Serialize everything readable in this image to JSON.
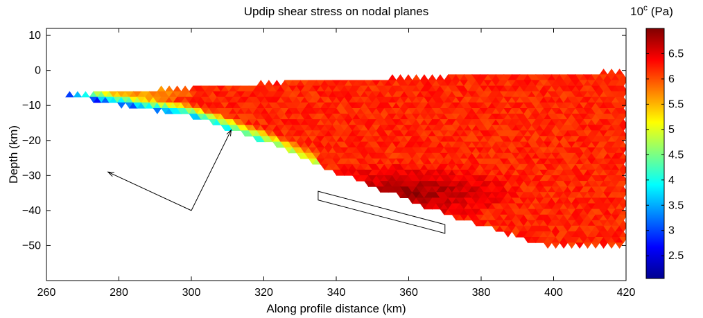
{
  "chart_data": {
    "type": "heatmap",
    "title": "Updip shear stress on nodal planes",
    "xlabel": "Along profile distance (km)",
    "ylabel": "Depth (km)",
    "xlim": [
      260,
      420
    ],
    "ylim": [
      -60,
      12
    ],
    "xticks": [
      "260",
      "280",
      "300",
      "320",
      "340",
      "360",
      "380",
      "400",
      "420"
    ],
    "yticks": [
      "10",
      "0",
      "−10",
      "−20",
      "−30",
      "−40",
      "−50"
    ],
    "xtick_values": [
      260,
      280,
      300,
      320,
      340,
      360,
      380,
      400,
      420
    ],
    "ytick_values": [
      10,
      0,
      -10,
      -20,
      -30,
      -40,
      -50
    ],
    "colorbar": {
      "label_base": "10",
      "label_exp": "c",
      "label_unit": " (Pa)",
      "range": [
        2.05,
        7.0
      ],
      "ticks": [
        "2.5",
        "3",
        "3.5",
        "4",
        "4.5",
        "5",
        "5.5",
        "6",
        "6.5"
      ],
      "tick_values": [
        2.5,
        3,
        3.5,
        4,
        4.5,
        5,
        5.5,
        6,
        6.5
      ],
      "colormap": "jet"
    },
    "domain_polygon": [
      [
        266,
        -7
      ],
      [
        335,
        -2.8
      ],
      [
        380,
        -1.5
      ],
      [
        420,
        -0.5
      ],
      [
        420,
        -50
      ],
      [
        398,
        -50
      ],
      [
        370,
        -41
      ],
      [
        340,
        -29
      ],
      [
        322,
        -21
      ],
      [
        300,
        -13
      ],
      [
        270,
        -8
      ]
    ],
    "annotations": {
      "arrow_vertex": [
        300,
        -40
      ],
      "arrow_tips": [
        [
          277,
          -29
        ],
        [
          311,
          -17
        ]
      ],
      "fault_rect": [
        [
          335,
          -34.5
        ],
        [
          370,
          -44
        ],
        [
          370,
          -46.5
        ],
        [
          335,
          -37
        ]
      ]
    }
  }
}
